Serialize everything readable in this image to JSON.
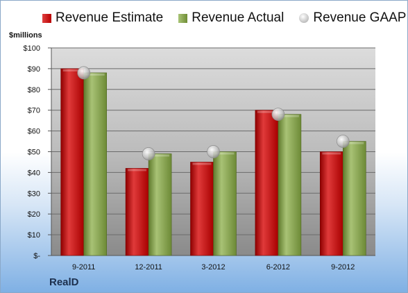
{
  "chart_data": {
    "type": "bar",
    "ylabel": "$millions",
    "ylim": [
      0,
      100
    ],
    "yticks": [
      0,
      10,
      20,
      30,
      40,
      50,
      60,
      70,
      80,
      90,
      100
    ],
    "ytick_labels": [
      "$-",
      "$10",
      "$20",
      "$30",
      "$40",
      "$50",
      "$60",
      "$70",
      "$80",
      "$90",
      "$100"
    ],
    "categories": [
      "9-2011",
      "12-2011",
      "3-2012",
      "6-2012",
      "9-2012"
    ],
    "series": [
      {
        "name": "Revenue Estimate",
        "type": "bar",
        "color": "#c81e1e",
        "values": [
          90,
          42,
          45,
          70,
          50
        ]
      },
      {
        "name": "Revenue Actual",
        "type": "bar",
        "color": "#8aaa4a",
        "values": [
          88,
          49,
          50,
          68,
          55
        ]
      },
      {
        "name": "Revenue GAAP",
        "type": "scatter",
        "color": "#c8c8c8",
        "values": [
          88,
          49,
          50,
          68,
          55
        ]
      }
    ],
    "legend_position": "top",
    "grid": true
  },
  "company": "RealD"
}
